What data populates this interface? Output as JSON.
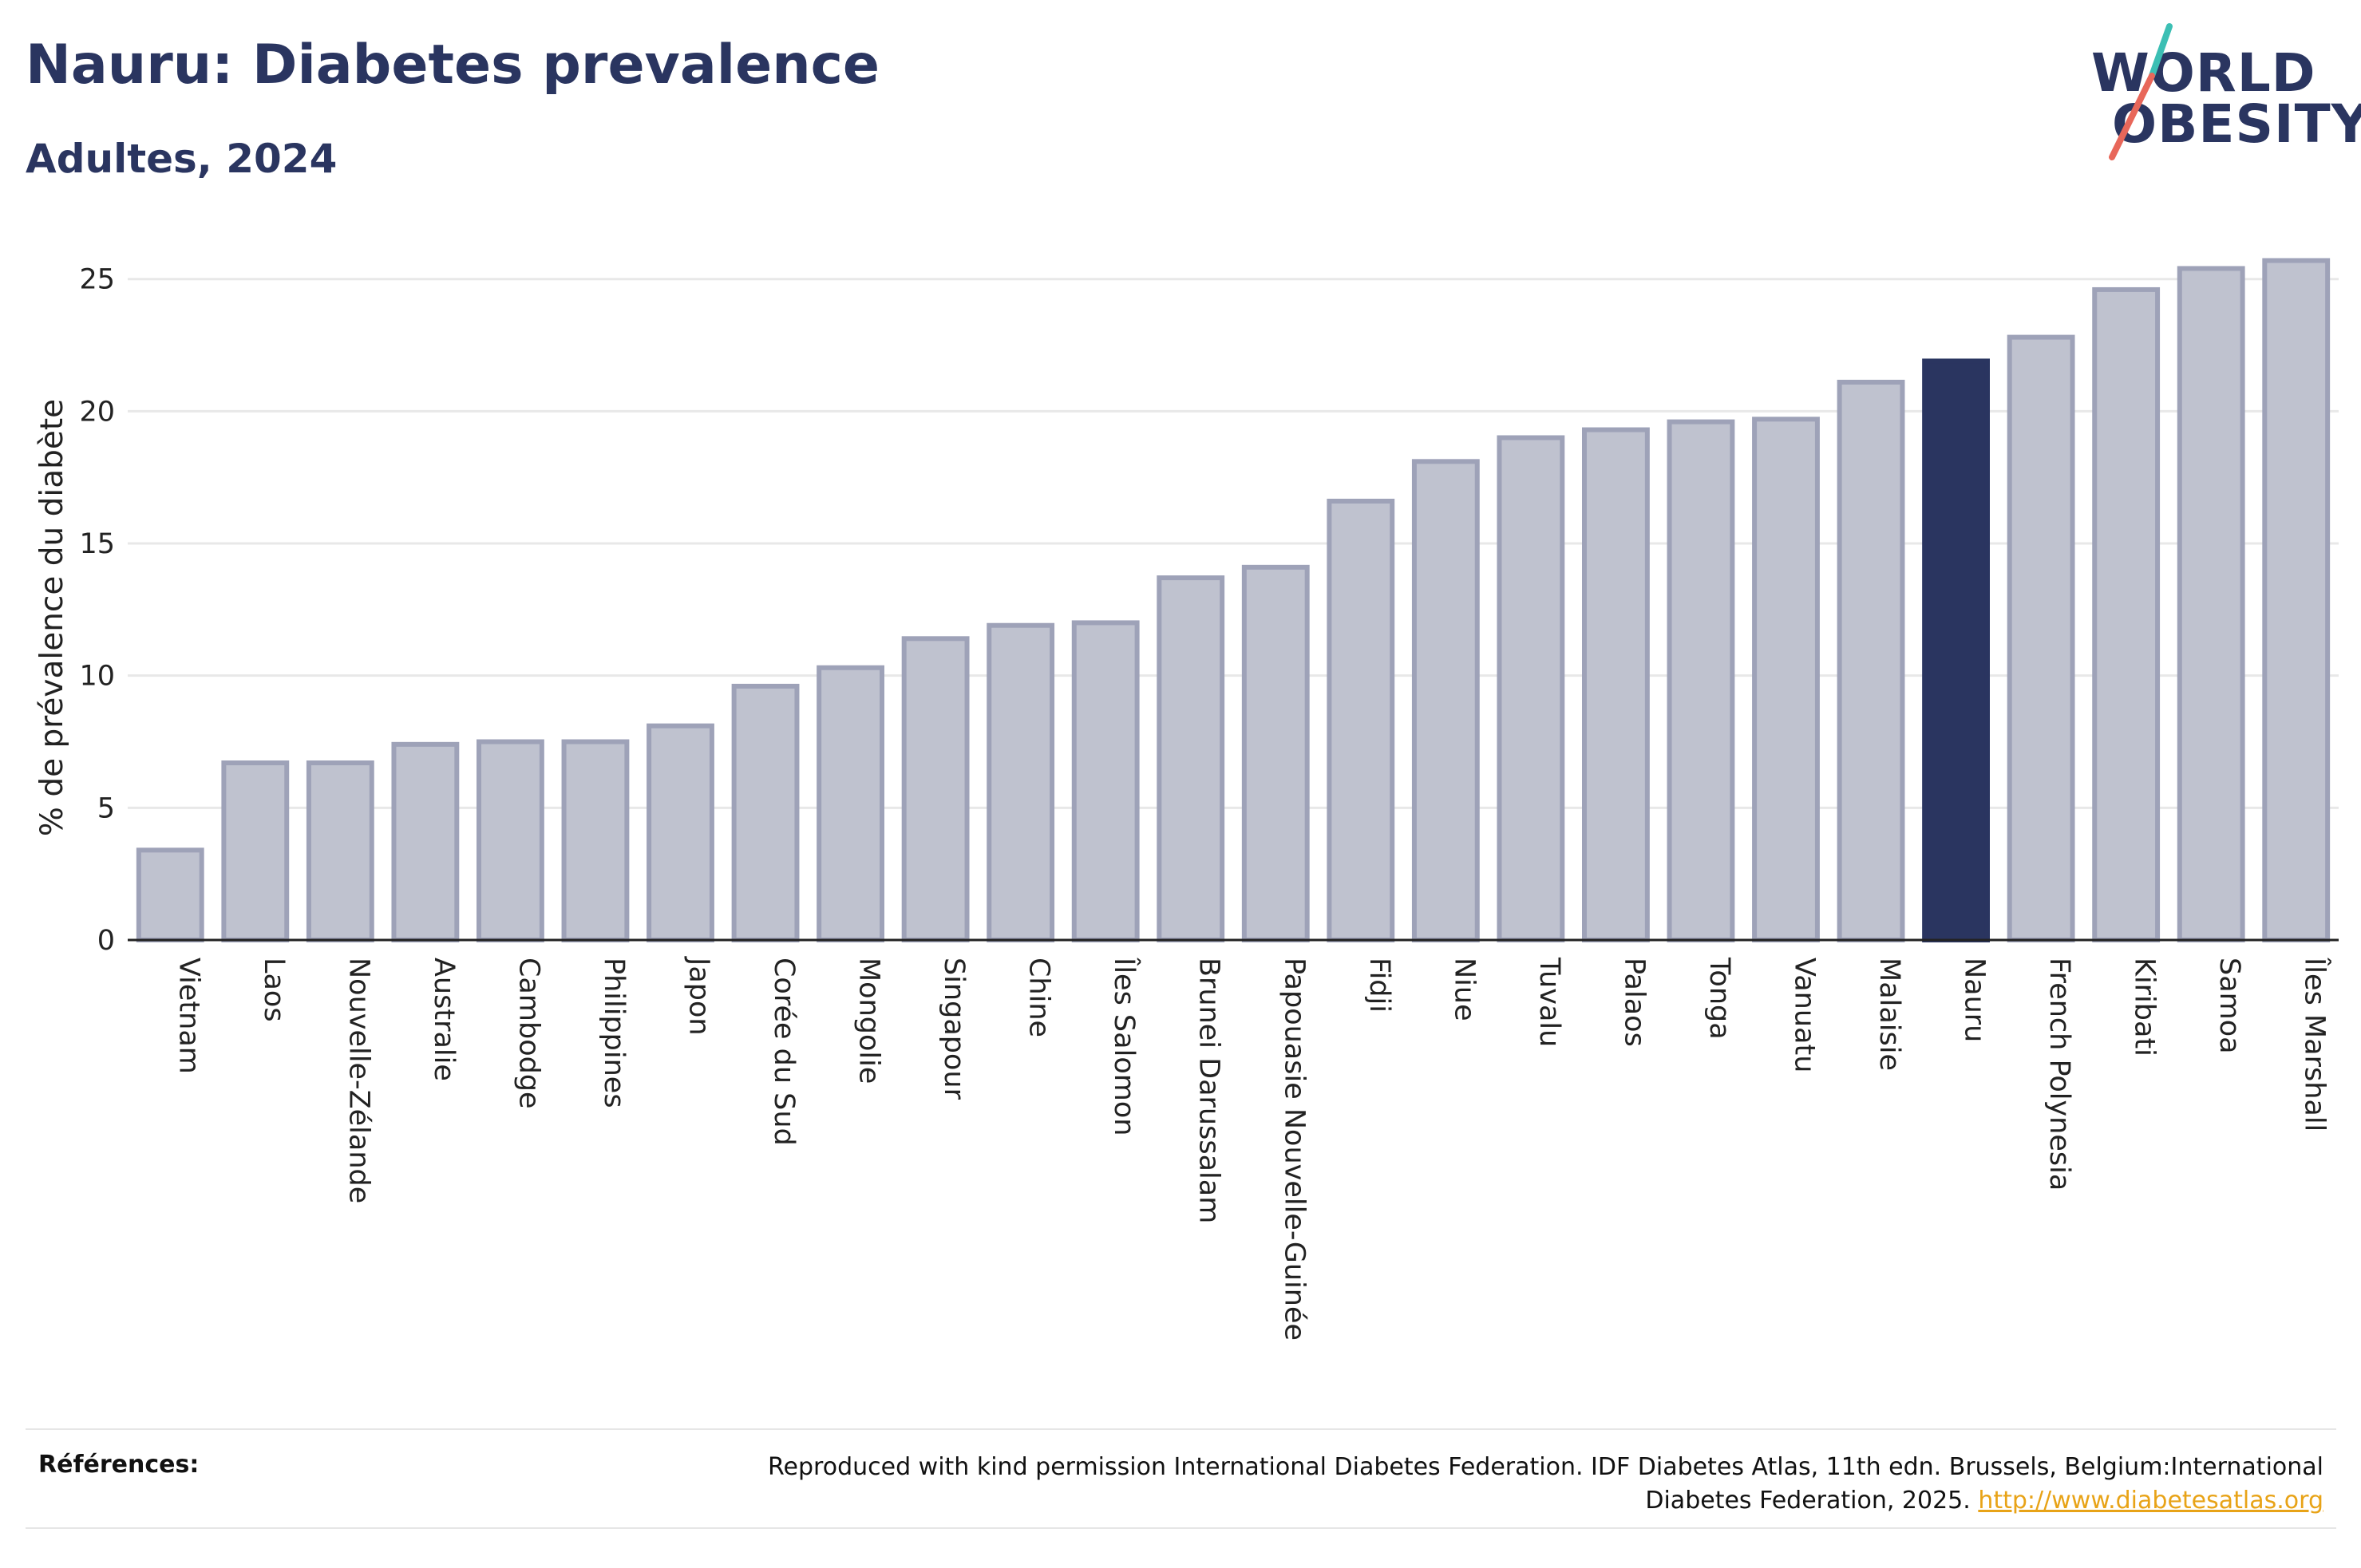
{
  "header": {
    "title": "Nauru: Diabetes prevalence",
    "subtitle": "Adultes, 2024"
  },
  "logo": {
    "line1": "WORLD",
    "line2": "OBESITY",
    "colors": {
      "text": "#2a3560",
      "slash_top": "#3cbfb4",
      "slash_bottom": "#e8675a"
    }
  },
  "colors": {
    "bar_fill": "#bfc2cf",
    "bar_stroke": "#9ea2b8",
    "highlight_fill": "#2a3560",
    "grid": "#e8e8e8",
    "axis": "#222222"
  },
  "chart_data": {
    "type": "bar",
    "ylabel": "% de prévalence du diabète",
    "xlabel": "",
    "ylim": [
      0,
      26.5
    ],
    "yticks": [
      0,
      5,
      10,
      15,
      20,
      25
    ],
    "grid": true,
    "highlight": "Nauru",
    "categories": [
      "Vietnam",
      "Laos",
      "Nouvelle-Zélande",
      "Australie",
      "Cambodge",
      "Philippines",
      "Japon",
      "Corée du Sud",
      "Mongolie",
      "Singapour",
      "Chine",
      "Îles Salomon",
      "Brunei Darussalam",
      "Papouasie Nouvelle-Guinée",
      "Fidji",
      "Niue",
      "Tuvalu",
      "Palaos",
      "Tonga",
      "Vanuatu",
      "Malaisie",
      "Nauru",
      "French Polynesia",
      "Kiribati",
      "Samoa",
      "Îles Marshall"
    ],
    "values": [
      3.4,
      6.7,
      6.7,
      7.4,
      7.5,
      7.5,
      8.1,
      9.6,
      10.3,
      11.4,
      11.9,
      12.0,
      13.7,
      14.1,
      16.6,
      18.1,
      19.0,
      19.3,
      19.6,
      19.7,
      21.1,
      21.9,
      22.8,
      24.6,
      25.4,
      25.7
    ]
  },
  "references": {
    "label": "Références:",
    "text": "Reproduced with kind permission International Diabetes Federation. IDF Diabetes Atlas, 11th edn. Brussels, Belgium:International Diabetes Federation, 2025.",
    "link": "http://www.diabetesatlas.org"
  }
}
